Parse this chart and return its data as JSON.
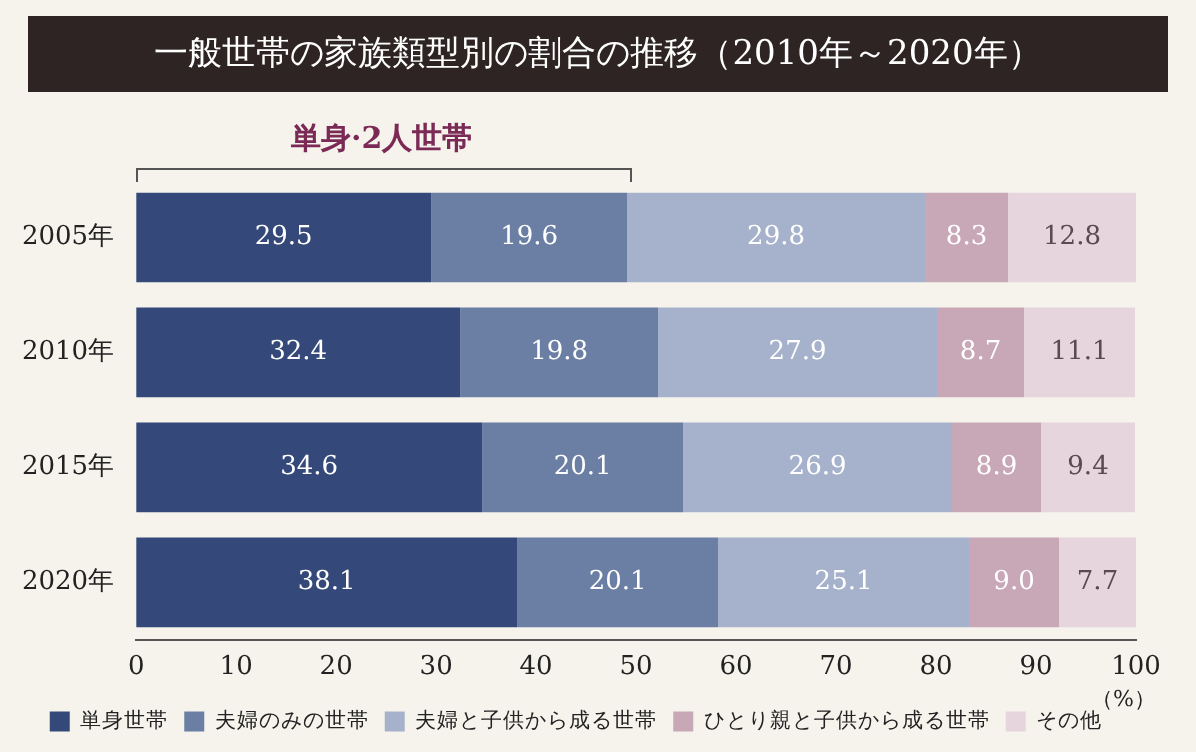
{
  "chart_data": {
    "type": "bar",
    "orientation": "horizontal",
    "stacked": true,
    "title": "一般世帯の家族類型別の割合の推移（2010年～2020年）",
    "xlabel": "（%）",
    "annotations": [
      "単身·2人世帯"
    ],
    "categories": [
      "2005年",
      "2010年",
      "2015年",
      "2020年"
    ],
    "series": [
      {
        "name": "単身世帯",
        "color": "#34497a",
        "values": [
          29.5,
          32.4,
          34.6,
          38.1
        ],
        "value_labels": [
          "29.5",
          "32.4",
          "34.6",
          "38.1"
        ]
      },
      {
        "name": "夫婦のみの世帯",
        "color": "#6b7ea4",
        "values": [
          19.6,
          19.8,
          20.1,
          20.1
        ],
        "value_labels": [
          "19.6",
          "19.8",
          "20.1",
          "20.1"
        ]
      },
      {
        "name": "夫婦と子供から成る世帯",
        "color": "#a6b2cb",
        "values": [
          29.8,
          27.9,
          26.9,
          25.1
        ],
        "value_labels": [
          "29.8",
          "27.9",
          "26.9",
          "25.1"
        ]
      },
      {
        "name": "ひとり親と子供から成る世帯",
        "color": "#c8a7b6",
        "values": [
          8.3,
          8.7,
          8.9,
          9.0
        ],
        "value_labels": [
          "8.3",
          "8.7",
          "8.9",
          "9.0"
        ]
      },
      {
        "name": "その他",
        "color": "#e7d5de",
        "values": [
          12.8,
          11.1,
          9.4,
          7.7
        ],
        "value_labels": [
          "12.8",
          "11.1",
          "9.4",
          "7.7"
        ]
      }
    ],
    "xlim": [
      0,
      100
    ],
    "xticks": [
      0,
      10,
      20,
      30,
      40,
      50,
      60,
      70,
      80,
      90,
      100
    ],
    "grid": false,
    "legend": "bottom"
  }
}
